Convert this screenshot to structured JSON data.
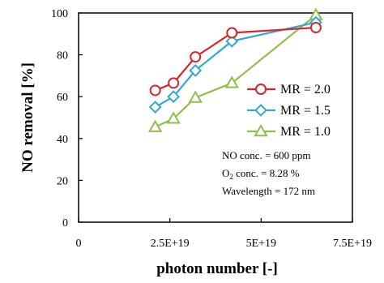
{
  "chart_data": {
    "type": "line",
    "xlabel": "photon number [-]",
    "ylabel": "NO removal [%]",
    "xlim": [
      0,
      75000000000000000000
    ],
    "ylim": [
      0,
      100
    ],
    "x_ticks": [
      0,
      25000000000000000000,
      50000000000000000000,
      75000000000000000000
    ],
    "x_tick_labels": [
      "0",
      "2.5E+19",
      "5E+19",
      "7.5E+19"
    ],
    "y_ticks": [
      0,
      20,
      40,
      60,
      80,
      100
    ],
    "y_tick_labels": [
      "0",
      "20",
      "40",
      "60",
      "80",
      "100"
    ],
    "grid": false,
    "legend_position": "right",
    "series": [
      {
        "name": "MR = 2.0",
        "color": "#d62728",
        "marker": "circle",
        "x": [
          21000000000000000000,
          26000000000000000000,
          32000000000000000000,
          42000000000000000000,
          65000000000000000000
        ],
        "y": [
          63,
          66.5,
          79,
          90.5,
          93
        ]
      },
      {
        "name": "MR = 1.5",
        "color": "#33a8d8",
        "marker": "diamond",
        "x": [
          21000000000000000000,
          26000000000000000000,
          32000000000000000000,
          42000000000000000000,
          65000000000000000000
        ],
        "y": [
          55,
          60,
          72.5,
          86.5,
          95.5
        ]
      },
      {
        "name": "MR = 1.0",
        "color": "#8fbf4a",
        "marker": "triangle",
        "x": [
          21000000000000000000,
          26000000000000000000,
          32000000000000000000,
          42000000000000000000,
          65000000000000000000
        ],
        "y": [
          45.5,
          49.5,
          59.5,
          66.5,
          99
        ]
      }
    ],
    "annotations": {
      "line1": "NO conc. = 600 ppm",
      "line2_prefix": "O",
      "line2_sub": "2",
      "line2_suffix": " conc. = 8.28 %",
      "line3": "Wavelength = 172 nm"
    }
  }
}
